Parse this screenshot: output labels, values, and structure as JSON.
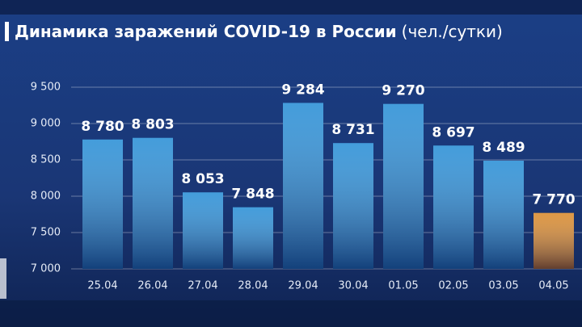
{
  "chart_data": {
    "type": "bar",
    "title": "Динамика заражений COVID-19 в России",
    "subtitle": "(чел./сутки)",
    "categories": [
      "25.04",
      "26.04",
      "27.04",
      "28.04",
      "29.04",
      "30.04",
      "01.05",
      "02.05",
      "03.05",
      "04.05"
    ],
    "values": [
      8780,
      8803,
      8053,
      7848,
      9284,
      8731,
      9270,
      8697,
      8489,
      7770
    ],
    "value_labels": [
      "8 780",
      "8 803",
      "8 053",
      "7 848",
      "9 284",
      "8 731",
      "9 270",
      "8 697",
      "8 489",
      "7 770"
    ],
    "colors": [
      "#2a8fd6",
      "#2a8fd6",
      "#2a8fd6",
      "#2a8fd6",
      "#2a8fd6",
      "#2a8fd6",
      "#2a8fd6",
      "#2a8fd6",
      "#2a8fd6",
      "#d98a2c"
    ],
    "ylim": [
      7000,
      9500
    ],
    "yticks": [
      {
        "value": 7000,
        "label": "7 000"
      },
      {
        "value": 7500,
        "label": "7 500"
      },
      {
        "value": 8000,
        "label": "8 000"
      },
      {
        "value": 8500,
        "label": "8 500"
      },
      {
        "value": 9000,
        "label": "9 000"
      },
      {
        "value": 9500,
        "label": "9 500"
      }
    ],
    "grid": true
  }
}
